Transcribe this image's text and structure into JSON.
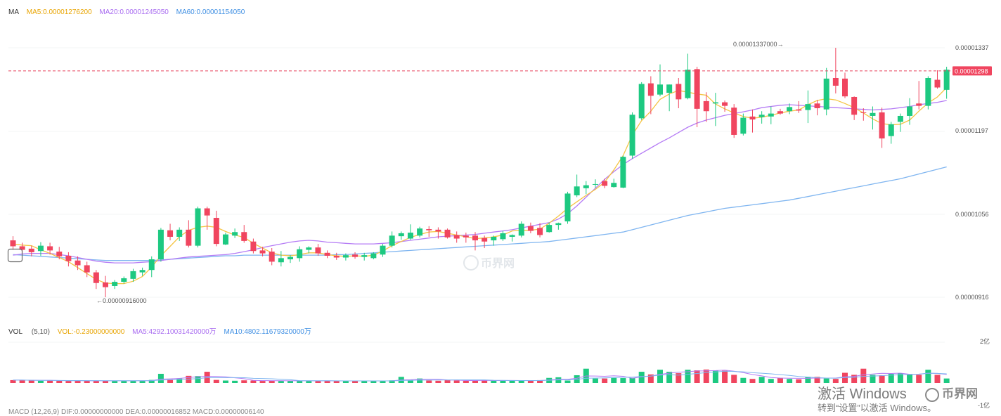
{
  "legend_top": {
    "label": "MA",
    "ma5": "MA5:0.00001276200",
    "ma20": "MA20:0.00001245050",
    "ma60": "MA60:0.00001154050"
  },
  "legend_vol": {
    "label": "VOL",
    "params": "(5,10)",
    "vol": "VOL:-0.23000000000",
    "ma5": "MA5:4292.10031420000万",
    "ma10": "MA10:4802.11679320000万"
  },
  "legend_macd": {
    "text": "MACD (12,26,9) DIF:0.00000000000 DEA:0.00000016852 MACD:0.00000006140"
  },
  "colors": {
    "up": "#1dc981",
    "down": "#f0455f",
    "ma5": "#f5c443",
    "ma20": "#b57cf5",
    "ma60": "#7fb5f0",
    "legend_ma5": "#e8a400",
    "legend_ma20": "#a86bf0",
    "legend_ma60": "#3f8fe3"
  },
  "price_axis": {
    "ticks": [
      "0.00001337",
      "0.00001197",
      "0.00001056",
      "0.00000916"
    ],
    "current_price": "0.00001298"
  },
  "vol_axis": {
    "top": "2亿",
    "bottom": "-1亿"
  },
  "annotations": {
    "high": "0.00001337000→",
    "low": "←0.00000916000"
  },
  "watermarks": {
    "center": "币界网",
    "corner": "币界网",
    "activate_title": "激活 Windows",
    "activate_sub": "转到“设置”以激活 Windows。"
  },
  "chart_data": {
    "type": "candlestick",
    "price_range": [
      9.16e-06,
      1.337e-05
    ],
    "current_price": 1.298e-05,
    "candles": [
      {
        "o": 1.012e-05,
        "h": 1.019e-05,
        "l": 9.96e-06,
        "c": 1.002e-05
      },
      {
        "o": 1.002e-05,
        "h": 1.008e-05,
        "l": 9.91e-06,
        "c": 9.96e-06
      },
      {
        "o": 9.98e-06,
        "h": 1.003e-05,
        "l": 9.85e-06,
        "c": 9.92e-06
      },
      {
        "o": 9.94e-06,
        "h": 1.009e-05,
        "l": 9.86e-06,
        "c": 1.003e-05
      },
      {
        "o": 1.002e-05,
        "h": 1.008e-05,
        "l": 9.88e-06,
        "c": 9.95e-06
      },
      {
        "o": 9.93e-06,
        "h": 1.001e-05,
        "l": 9.8e-06,
        "c": 9.85e-06
      },
      {
        "o": 9.86e-06,
        "h": 9.92e-06,
        "l": 9.68e-06,
        "c": 9.77e-06
      },
      {
        "o": 9.78e-06,
        "h": 9.85e-06,
        "l": 9.62e-06,
        "c": 9.7e-06
      },
      {
        "o": 9.7e-06,
        "h": 9.76e-06,
        "l": 9.5e-06,
        "c": 9.58e-06
      },
      {
        "o": 9.58e-06,
        "h": 9.62e-06,
        "l": 9.3e-06,
        "c": 9.4e-06
      },
      {
        "o": 9.41e-06,
        "h": 9.52e-06,
        "l": 9.16e-06,
        "c": 9.33e-06
      },
      {
        "o": 9.35e-06,
        "h": 9.45e-06,
        "l": 9.3e-06,
        "c": 9.42e-06
      },
      {
        "o": 9.42e-06,
        "h": 9.51e-06,
        "l": 9.39e-06,
        "c": 9.48e-06
      },
      {
        "o": 9.47e-06,
        "h": 9.64e-06,
        "l": 9.42e-06,
        "c": 9.6e-06
      },
      {
        "o": 9.58e-06,
        "h": 9.66e-06,
        "l": 9.52e-06,
        "c": 9.62e-06
      },
      {
        "o": 9.62e-06,
        "h": 9.85e-06,
        "l": 9.5e-06,
        "c": 9.8e-06
      },
      {
        "o": 9.8e-06,
        "h": 1.033e-05,
        "l": 9.76e-06,
        "c": 1.03e-05
      },
      {
        "o": 1.029e-05,
        "h": 1.04e-05,
        "l": 1.012e-05,
        "c": 1.018e-05
      },
      {
        "o": 1.018e-05,
        "h": 1.034e-05,
        "l": 1.011e-05,
        "c": 1.03e-05
      },
      {
        "o": 1.03e-05,
        "h": 1.046e-05,
        "l": 1e-05,
        "c": 1.003e-05
      },
      {
        "o": 1.003e-05,
        "h": 1.069e-05,
        "l": 1e-05,
        "c": 1.066e-05
      },
      {
        "o": 1.066e-05,
        "h": 1.069e-05,
        "l": 1.03e-05,
        "c": 1.054e-05
      },
      {
        "o": 1.05e-05,
        "h": 1.062e-05,
        "l": 1.002e-05,
        "c": 1.006e-05
      },
      {
        "o": 1.005e-05,
        "h": 1.025e-05,
        "l": 1.004e-05,
        "c": 1.022e-05
      },
      {
        "o": 1.02e-05,
        "h": 1.032e-05,
        "l": 1.016e-05,
        "c": 1.026e-05
      },
      {
        "o": 1.026e-05,
        "h": 1.038e-05,
        "l": 1.008e-05,
        "c": 1.011e-05
      },
      {
        "o": 1.01e-05,
        "h": 1.015e-05,
        "l": 9.9e-06,
        "c": 9.94e-06
      },
      {
        "o": 9.95e-06,
        "h": 1.001e-05,
        "l": 9.85e-06,
        "c": 9.9e-06
      },
      {
        "o": 9.93e-06,
        "h": 9.99e-06,
        "l": 9.7e-06,
        "c": 9.76e-06
      },
      {
        "o": 9.75e-06,
        "h": 9.94e-06,
        "l": 9.68e-06,
        "c": 9.82e-06
      },
      {
        "o": 9.8e-06,
        "h": 9.87e-06,
        "l": 9.74e-06,
        "c": 9.84e-06
      },
      {
        "o": 9.82e-06,
        "h": 1.002e-05,
        "l": 9.76e-06,
        "c": 9.97e-06
      },
      {
        "o": 9.96e-06,
        "h": 1.002e-05,
        "l": 9.9e-06,
        "c": 1e-05
      },
      {
        "o": 1e-05,
        "h": 1.006e-05,
        "l": 9.86e-06,
        "c": 9.9e-06
      },
      {
        "o": 9.91e-06,
        "h": 9.95e-06,
        "l": 9.82e-06,
        "c": 9.86e-06
      },
      {
        "o": 9.86e-06,
        "h": 9.91e-06,
        "l": 9.79e-06,
        "c": 9.83e-06
      },
      {
        "o": 9.83e-06,
        "h": 9.9e-06,
        "l": 9.78e-06,
        "c": 9.87e-06
      },
      {
        "o": 9.88e-06,
        "h": 9.92e-06,
        "l": 9.81e-06,
        "c": 9.84e-06
      },
      {
        "o": 9.84e-06,
        "h": 9.91e-06,
        "l": 9.78e-06,
        "c": 9.87e-06
      },
      {
        "o": 9.82e-06,
        "h": 9.92e-06,
        "l": 9.8e-06,
        "c": 9.9e-06
      },
      {
        "o": 9.88e-06,
        "h": 1.006e-05,
        "l": 9.84e-06,
        "c": 1.003e-05
      },
      {
        "o": 1.003e-05,
        "h": 1.027e-05,
        "l": 1e-05,
        "c": 1.02e-05
      },
      {
        "o": 1.019e-05,
        "h": 1.027e-05,
        "l": 1.013e-05,
        "c": 1.024e-05
      },
      {
        "o": 1.015e-05,
        "h": 1.039e-05,
        "l": 1.013e-05,
        "c": 1.025e-05
      },
      {
        "o": 1.02e-05,
        "h": 1.035e-05,
        "l": 1.017e-05,
        "c": 1.032e-05
      },
      {
        "o": 1.031e-05,
        "h": 1.036e-05,
        "l": 1.018e-05,
        "c": 1.029e-05
      },
      {
        "o": 1.03e-05,
        "h": 1.034e-05,
        "l": 1.015e-05,
        "c": 1.027e-05
      },
      {
        "o": 1.03e-05,
        "h": 1.032e-05,
        "l": 1.015e-05,
        "c": 1.017e-05
      },
      {
        "o": 1.021e-05,
        "h": 1.027e-05,
        "l": 1.008e-05,
        "c": 1.015e-05
      },
      {
        "o": 1.02e-05,
        "h": 1.025e-05,
        "l": 1.008e-05,
        "c": 1.017e-05
      },
      {
        "o": 1.02e-05,
        "h": 1.026e-05,
        "l": 9.95e-06,
        "c": 1.012e-05
      },
      {
        "o": 1.016e-05,
        "h": 1.02e-05,
        "l": 9.99e-06,
        "c": 1.01e-05
      },
      {
        "o": 1.012e-05,
        "h": 1.02e-05,
        "l": 1.003e-05,
        "c": 1.018e-05
      },
      {
        "o": 1.014e-05,
        "h": 1.028e-05,
        "l": 1.011e-05,
        "c": 1.024e-05
      },
      {
        "o": 1.018e-05,
        "h": 1.022e-05,
        "l": 1.01e-05,
        "c": 1.021e-05
      },
      {
        "o": 1.02e-05,
        "h": 1.044e-05,
        "l": 1.017e-05,
        "c": 1.04e-05
      },
      {
        "o": 1.036e-05,
        "h": 1.042e-05,
        "l": 1.024e-05,
        "c": 1.028e-05
      },
      {
        "o": 1.033e-05,
        "h": 1.041e-05,
        "l": 1.017e-05,
        "c": 1.021e-05
      },
      {
        "o": 1.026e-05,
        "h": 1.042e-05,
        "l": 1.025e-05,
        "c": 1.038e-05
      },
      {
        "o": 1.038e-05,
        "h": 1.042e-05,
        "l": 1.03e-05,
        "c": 1.041e-05
      },
      {
        "o": 1.044e-05,
        "h": 1.094e-05,
        "l": 1.04e-05,
        "c": 1.091e-05
      },
      {
        "o": 1.088e-05,
        "h": 1.123e-05,
        "l": 1.085e-05,
        "c": 1.103e-05
      },
      {
        "o": 1.1e-05,
        "h": 1.112e-05,
        "l": 1.09e-05,
        "c": 1.105e-05
      },
      {
        "o": 1.106e-05,
        "h": 1.115e-05,
        "l": 1.101e-05,
        "c": 1.107e-05
      },
      {
        "o": 1.112e-05,
        "h": 1.116e-05,
        "l": 1.1e-05,
        "c": 1.104e-05
      },
      {
        "o": 1.102e-05,
        "h": 1.116e-05,
        "l": 1.101e-05,
        "c": 1.109e-05
      },
      {
        "o": 1.101e-05,
        "h": 1.155e-05,
        "l": 1.1e-05,
        "c": 1.153e-05
      },
      {
        "o": 1.155e-05,
        "h": 1.228e-05,
        "l": 1.15e-05,
        "c": 1.224e-05
      },
      {
        "o": 1.218e-05,
        "h": 1.279e-05,
        "l": 1.215e-05,
        "c": 1.276e-05
      },
      {
        "o": 1.277e-05,
        "h": 1.289e-05,
        "l": 1.225e-05,
        "c": 1.256e-05
      },
      {
        "o": 1.258e-05,
        "h": 1.309e-05,
        "l": 1.255e-05,
        "c": 1.275e-05
      },
      {
        "o": 1.261e-05,
        "h": 1.275e-05,
        "l": 1.23e-05,
        "c": 1.275e-05
      },
      {
        "o": 1.276e-05,
        "h": 1.286e-05,
        "l": 1.235e-05,
        "c": 1.25e-05
      },
      {
        "o": 1.252e-05,
        "h": 1.327e-05,
        "l": 1.25e-05,
        "c": 1.3e-05
      },
      {
        "o": 1.301e-05,
        "h": 1.305e-05,
        "l": 1.203e-05,
        "c": 1.234e-05
      },
      {
        "o": 1.247e-05,
        "h": 1.262e-05,
        "l": 1.212e-05,
        "c": 1.23e-05
      },
      {
        "o": 1.243e-05,
        "h": 1.261e-05,
        "l": 1.205e-05,
        "c": 1.245e-05
      },
      {
        "o": 1.245e-05,
        "h": 1.248e-05,
        "l": 1.229e-05,
        "c": 1.239e-05
      },
      {
        "o": 1.236e-05,
        "h": 1.242e-05,
        "l": 1.185e-05,
        "c": 1.19e-05
      },
      {
        "o": 1.192e-05,
        "h": 1.226e-05,
        "l": 1.189e-05,
        "c": 1.219e-05
      },
      {
        "o": 1.221e-05,
        "h": 1.233e-05,
        "l": 1.194e-05,
        "c": 1.216e-05
      },
      {
        "o": 1.22e-05,
        "h": 1.23e-05,
        "l": 1.209e-05,
        "c": 1.224e-05
      },
      {
        "o": 1.221e-05,
        "h": 1.238e-05,
        "l": 1.208e-05,
        "c": 1.226e-05
      },
      {
        "o": 1.23e-05,
        "h": 1.234e-05,
        "l": 1.224e-05,
        "c": 1.226e-05
      },
      {
        "o": 1.23e-05,
        "h": 1.243e-05,
        "l": 1.225e-05,
        "c": 1.237e-05
      },
      {
        "o": 1.233e-05,
        "h": 1.247e-05,
        "l": 1.227e-05,
        "c": 1.231e-05
      },
      {
        "o": 1.232e-05,
        "h": 1.265e-05,
        "l": 1.21e-05,
        "c": 1.242e-05
      },
      {
        "o": 1.243e-05,
        "h": 1.249e-05,
        "l": 1.223e-05,
        "c": 1.235e-05
      },
      {
        "o": 1.233e-05,
        "h": 1.303e-05,
        "l": 1.223e-05,
        "c": 1.285e-05
      },
      {
        "o": 1.286e-05,
        "h": 1.337e-05,
        "l": 1.26e-05,
        "c": 1.273e-05
      },
      {
        "o": 1.285e-05,
        "h": 1.295e-05,
        "l": 1.252e-05,
        "c": 1.255e-05
      },
      {
        "o": 1.254e-05,
        "h": 1.255e-05,
        "l": 1.215e-05,
        "c": 1.224e-05
      },
      {
        "o": 1.228e-05,
        "h": 1.235e-05,
        "l": 1.214e-05,
        "c": 1.227e-05
      },
      {
        "o": 1.222e-05,
        "h": 1.238e-05,
        "l": 1.199e-05,
        "c": 1.227e-05
      },
      {
        "o": 1.228e-05,
        "h": 1.236e-05,
        "l": 1.168e-05,
        "c": 1.184e-05
      },
      {
        "o": 1.188e-05,
        "h": 1.212e-05,
        "l": 1.175e-05,
        "c": 1.208e-05
      },
      {
        "o": 1.212e-05,
        "h": 1.226e-05,
        "l": 1.195e-05,
        "c": 1.222e-05
      },
      {
        "o": 1.222e-05,
        "h": 1.252e-05,
        "l": 1.207e-05,
        "c": 1.238e-05
      },
      {
        "o": 1.243e-05,
        "h": 1.281e-05,
        "l": 1.233e-05,
        "c": 1.239e-05
      },
      {
        "o": 1.239e-05,
        "h": 1.289e-05,
        "l": 1.233e-05,
        "c": 1.286e-05
      },
      {
        "o": 1.283e-05,
        "h": 1.299e-05,
        "l": 1.268e-05,
        "c": 1.27e-05
      },
      {
        "o": 1.266e-05,
        "h": 1.305e-05,
        "l": 1.251e-05,
        "c": 1.3e-05
      },
      {
        "o": 1.3e-05,
        "h": 1.303e-05,
        "l": 1.295e-05,
        "c": 1.298e-05
      }
    ],
    "ma5": [
      1.006e-05,
      1.004e-05,
      1.003e-05,
      9.96e-06,
      9.9e-06,
      9.83e-06,
      9.76e-06,
      9.66e-06,
      9.56e-06,
      9.46e-06,
      9.4e-06,
      9.39e-06,
      9.39e-06,
      9.43e-06,
      9.51e-06,
      9.67e-06,
      9.86e-06,
      1.002e-05,
      1.018e-05,
      1.029e-05,
      1.034e-05,
      1.036e-05,
      1.034e-05,
      1.027e-05,
      1.021e-05,
      1.017e-05,
      1.007e-05,
      9.99e-06,
      9.91e-06,
      9.87e-06,
      9.86e-06,
      9.88e-06,
      9.91e-06,
      9.91e-06,
      9.88e-06,
      9.86e-06,
      9.85e-06,
      9.86e-06,
      9.85e-06,
      9.87e-06,
      9.94e-06,
      1.003e-05,
      1.01e-05,
      1.017e-05,
      1.022e-05,
      1.026e-05,
      1.027e-05,
      1.024e-05,
      1.021e-05,
      1.018e-05,
      1.015e-05,
      1.016e-05,
      1.018e-05,
      1.021e-05,
      1.028e-05,
      1.029e-05,
      1.029e-05,
      1.031e-05,
      1.041e-05,
      1.053e-05,
      1.066e-05,
      1.077e-05,
      1.088e-05,
      1.098e-05,
      1.11e-05,
      1.131e-05,
      1.155e-05,
      1.19e-05,
      1.214e-05,
      1.23e-05,
      1.25e-05,
      1.259e-05,
      1.265e-05,
      1.262e-05,
      1.259e-05,
      1.257e-05,
      1.242e-05,
      1.234e-05,
      1.227e-05,
      1.221e-05,
      1.218e-05,
      1.22e-05,
      1.223e-05,
      1.227e-05,
      1.23e-05,
      1.232e-05,
      1.241e-05,
      1.248e-05,
      1.251e-05,
      1.249e-05,
      1.243e-05,
      1.236e-05,
      1.227e-05,
      1.217e-05,
      1.209e-05,
      1.207e-05,
      1.208e-05,
      1.215e-05,
      1.23e-05,
      1.244e-05,
      1.254e-05,
      1.27e-05
    ],
    "ma20": [
      9.87e-06,
      9.89e-06,
      9.9e-06,
      9.9e-06,
      9.9e-06,
      9.88e-06,
      9.86e-06,
      9.83e-06,
      9.8e-06,
      9.77e-06,
      9.75e-06,
      9.74e-06,
      9.74e-06,
      9.74e-06,
      9.75e-06,
      9.76e-06,
      9.78e-06,
      9.8e-06,
      9.82e-06,
      9.84e-06,
      9.85e-06,
      9.86e-06,
      9.87e-06,
      9.88e-06,
      9.9e-06,
      9.93e-06,
      9.96e-06,
      1e-05,
      1.003e-05,
      1.006e-05,
      1.009e-05,
      1.011e-05,
      1.012e-05,
      1.011e-05,
      1.009e-05,
      1.008e-05,
      1.007e-05,
      1.006e-05,
      1.006e-05,
      1.006e-05,
      1.007e-05,
      1.008e-05,
      1.01e-05,
      1.012e-05,
      1.014e-05,
      1.016e-05,
      1.018e-05,
      1.019e-05,
      1.02e-05,
      1.021e-05,
      1.022e-05,
      1.024e-05,
      1.026e-05,
      1.028e-05,
      1.03e-05,
      1.033e-05,
      1.036e-05,
      1.039e-05,
      1.042e-05,
      1.048e-05,
      1.057e-05,
      1.07e-05,
      1.085e-05,
      1.1e-05,
      1.115e-05,
      1.128e-05,
      1.14e-05,
      1.15e-05,
      1.159e-05,
      1.168e-05,
      1.177e-05,
      1.185e-05,
      1.194e-05,
      1.203e-05,
      1.21e-05,
      1.215e-05,
      1.219e-05,
      1.223e-05,
      1.226e-05,
      1.229e-05,
      1.232e-05,
      1.236e-05,
      1.238e-05,
      1.24e-05,
      1.241e-05,
      1.24e-05,
      1.239e-05,
      1.238e-05,
      1.237e-05,
      1.236e-05,
      1.235e-05,
      1.234e-05,
      1.233e-05,
      1.232e-05,
      1.233e-05,
      1.234e-05,
      1.236e-05,
      1.238e-05,
      1.241e-05,
      1.243e-05,
      1.245e-05,
      1.248e-05
    ],
    "ma60": [
      9.88e-06,
      9.87e-06,
      9.86e-06,
      9.85e-06,
      9.84e-06,
      9.83e-06,
      9.82e-06,
      9.81e-06,
      9.8e-06,
      9.79e-06,
      9.78e-06,
      9.78e-06,
      9.78e-06,
      9.78e-06,
      9.78e-06,
      9.78e-06,
      9.79e-06,
      9.8e-06,
      9.81e-06,
      9.82e-06,
      9.83e-06,
      9.84e-06,
      9.85e-06,
      9.86e-06,
      9.86e-06,
      9.87e-06,
      9.87e-06,
      9.87e-06,
      9.87e-06,
      9.87e-06,
      9.87e-06,
      9.87e-06,
      9.87e-06,
      9.87e-06,
      9.87e-06,
      9.88e-06,
      9.88e-06,
      9.89e-06,
      9.9e-06,
      9.91e-06,
      9.92e-06,
      9.93e-06,
      9.94e-06,
      9.95e-06,
      9.96e-06,
      9.97e-06,
      9.98e-06,
      9.99e-06,
      1e-05,
      1.001e-05,
      1.002e-05,
      1.003e-05,
      1.004e-05,
      1.005e-05,
      1.006e-05,
      1.007e-05,
      1.008e-05,
      1.009e-05,
      1.01e-05,
      1.012e-05,
      1.014e-05,
      1.016e-05,
      1.018e-05,
      1.02e-05,
      1.022e-05,
      1.024e-05,
      1.026e-05,
      1.03e-05,
      1.034e-05,
      1.038e-05,
      1.042e-05,
      1.046e-05,
      1.05e-05,
      1.054e-05,
      1.057e-05,
      1.06e-05,
      1.063e-05,
      1.066e-05,
      1.068e-05,
      1.07e-05,
      1.072e-05,
      1.074e-05,
      1.076e-05,
      1.078e-05,
      1.08e-05,
      1.083e-05,
      1.086e-05,
      1.089e-05,
      1.092e-05,
      1.095e-05,
      1.098e-05,
      1.101e-05,
      1.104e-05,
      1.107e-05,
      1.11e-05,
      1.113e-05,
      1.116e-05,
      1.12e-05,
      1.124e-05,
      1.128e-05,
      1.132e-05,
      1.136e-05
    ],
    "volume": {
      "range": [
        -100000000,
        200000000
      ],
      "values": [
        14,
        14,
        12,
        11,
        12,
        11,
        10,
        12,
        11,
        10,
        11,
        10,
        11,
        11,
        12,
        15,
        45,
        18,
        22,
        35,
        34,
        55,
        15,
        12,
        11,
        13,
        12,
        10,
        11,
        10,
        11,
        11,
        10,
        10,
        11,
        10,
        10,
        10,
        10,
        10,
        11,
        13,
        30,
        15,
        22,
        12,
        11,
        14,
        12,
        11,
        12,
        14,
        12,
        12,
        12,
        11,
        11,
        14,
        25,
        28,
        12,
        38,
        70,
        22,
        22,
        25,
        24,
        25,
        55,
        42,
        65,
        55,
        48,
        65,
        62,
        66,
        62,
        60,
        40,
        25,
        20,
        30,
        20,
        25,
        20,
        18,
        30,
        30,
        22,
        20,
        50,
        40,
        70,
        40,
        38,
        45,
        48,
        42,
        40,
        65,
        40,
        22
      ]
    }
  }
}
